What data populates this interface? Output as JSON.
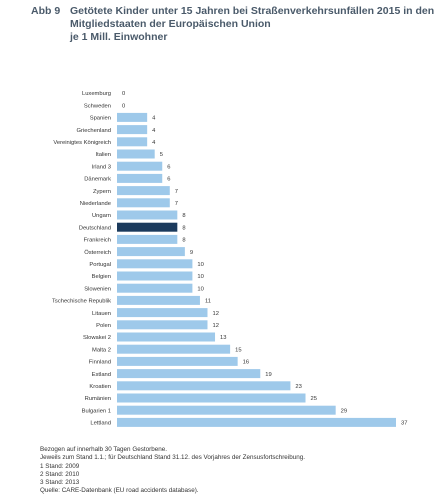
{
  "figure_label": "Abb 9",
  "title_lines": [
    "Getötete Kinder unter 15 Jahren bei Straßenverkehrsunfällen 2015 in den",
    "Mitgliedstaaten der Europäischen Union",
    "je 1 Mill. Einwohner"
  ],
  "chart_data": {
    "type": "bar",
    "orientation": "horizontal",
    "categories": [
      "Luxemburg",
      "Schweden",
      "Spanien",
      "Griechenland",
      "Vereinigtes Königreich",
      "Italien",
      "Irland 3",
      "Dänemark",
      "Zypern",
      "Niederlande",
      "Ungarn",
      "Deutschland",
      "Frankreich",
      "Österreich",
      "Portugal",
      "Belgien",
      "Slowenien",
      "Tschechische Republik",
      "Litauen",
      "Polen",
      "Slowakei 2",
      "Malta 2",
      "Finnland",
      "Estland",
      "Kroatien",
      "Rumänien",
      "Bulgarien 1",
      "Lettland"
    ],
    "values": [
      0,
      0,
      4,
      4,
      4,
      5,
      6,
      6,
      7,
      7,
      8,
      8,
      8,
      9,
      10,
      10,
      10,
      11,
      12,
      12,
      13,
      15,
      16,
      19,
      23,
      25,
      29,
      37
    ],
    "data_labels": [
      "0",
      "0",
      "4",
      "4",
      "4",
      "5",
      "6",
      "6",
      "7",
      "7",
      "8",
      "8",
      "8",
      "9",
      "10",
      "10",
      "10",
      "11",
      "12",
      "12",
      "13",
      "15",
      "16",
      "19",
      "23",
      "25",
      "29",
      "37"
    ],
    "highlight_category": "Deutschland",
    "xlim": [
      0,
      37
    ],
    "grid": false,
    "legend": "none",
    "colors": {
      "bar": "#9ec9ea",
      "highlight": "#1b3a5c",
      "text": "#333333"
    }
  },
  "notes": [
    "Bezogen auf innerhalb 30 Tagen Gestorbene.",
    "Jeweils zum Stand 1.1.; für Deutschland Stand 31.12. des Vorjahres der Zensusfortschreibung.",
    "1 Stand: 2009",
    "2 Stand: 2010",
    "3 Stand: 2013",
    "Quelle: CARE-Datenbank (EU road accidents database)."
  ]
}
